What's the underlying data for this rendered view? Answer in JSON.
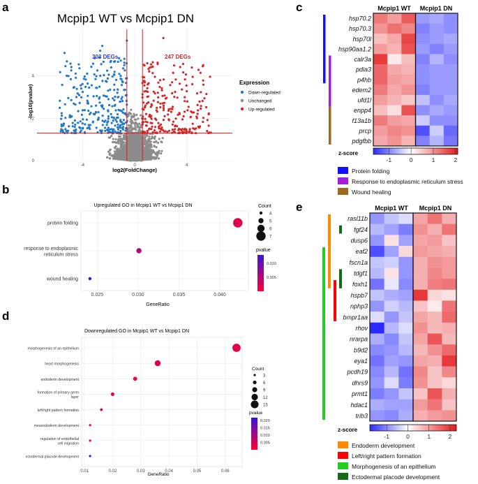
{
  "panels": {
    "a": "a",
    "b": "b",
    "c": "c",
    "d": "d",
    "e": "e"
  },
  "colors": {
    "down": "#1f78c8",
    "up": "#d62728",
    "unchanged": "#8c8c8c",
    "hm_low": "#2b2bff",
    "hm_mid": "#ffffff",
    "hm_high": "#e31a1c",
    "protein_folding": "#1010ff",
    "er_stress": "#a01fd8",
    "wound_healing": "#9c6a1f",
    "endoderm": "#ff8a00",
    "left_right": "#ff0000",
    "morphogenesis": "#22cc22",
    "ectodermal": "#136b13"
  },
  "chart_data": [
    {
      "id": "volcano",
      "type": "scatter",
      "title": "Mcpip1 WT vs Mcpip1 DN",
      "xlabel": "log2(FoldChange)",
      "ylabel": "-log10(pvalue)",
      "xticks": [
        -4,
        0,
        4
      ],
      "yticks": [
        0,
        2,
        4
      ],
      "xlim": [
        -7.5,
        7.5
      ],
      "ylim": [
        0,
        6.2
      ],
      "fc_threshold": 0.6,
      "p_threshold": 1.3,
      "down_label": "303 DEGs",
      "up_label": "247 DEGs",
      "legend_title": "Expression",
      "legend": [
        "Down-regulated",
        "Unchanged",
        "Up-regulated"
      ]
    },
    {
      "id": "go_up",
      "type": "scatter",
      "title": "Upregulated GO in Mcpip1 WT vs Mcpip1 DN",
      "xlabel": "GeneRatio",
      "xticks": [
        "0.025",
        "0.030",
        "0.035",
        "0.040"
      ],
      "xlim": [
        0.023,
        0.0435
      ],
      "terms": [
        "protein folding",
        "response to endoplasmic reticulum stress",
        "wound healing"
      ],
      "term_lines": [
        [
          "protein folding"
        ],
        [
          "response to endoplasmic",
          "reticulum stress"
        ],
        [
          "wound healing"
        ]
      ],
      "gene_ratio": [
        0.0422,
        0.0301,
        0.0241
      ],
      "count": [
        7,
        5,
        4
      ],
      "pvalue": [
        0.002,
        0.006,
        0.013
      ],
      "size_legend_title": "Count",
      "size_legend": [
        "4",
        "5",
        "6",
        "7"
      ],
      "color_legend_title": "pvalue",
      "color_ticks": [
        "0.010",
        "0.005"
      ]
    },
    {
      "id": "go_down",
      "type": "scatter",
      "title": "Downregulated GO in Mcpip1 WT vs Mcpip1 DN",
      "xlabel": "GeneRatio",
      "xticks": [
        "0.01",
        "0.02",
        "0.03",
        "0.04",
        "0.05",
        "0.06"
      ],
      "xlim": [
        0.009,
        0.066
      ],
      "terms": [
        "morphogenesis of an epithelium",
        "heart morphogenesis",
        "endoderm development",
        "formation of primary germ layer",
        "left/right pattern formation",
        "mesendoderm development",
        "regulation of endothelial cell migration",
        "ectodermal placode development"
      ],
      "term_lines": [
        [
          "morphogenesis of an epithelium"
        ],
        [
          "heart morphogenesis"
        ],
        [
          "endoderm development"
        ],
        [
          "formation of primary germ",
          "layer"
        ],
        [
          "left/right pattern formation"
        ],
        [
          "mesendoderm development"
        ],
        [
          "regulation of endothelial",
          "cell migration"
        ],
        [
          "ectodermal placode development"
        ]
      ],
      "gene_ratio": [
        0.064,
        0.036,
        0.028,
        0.02,
        0.016,
        0.012,
        0.012,
        0.012
      ],
      "count": [
        16,
        11,
        7,
        6,
        4,
        3,
        3,
        3
      ],
      "pvalue": [
        0.003,
        0.004,
        0.002,
        0.003,
        0.004,
        0.002,
        0.003,
        0.021
      ],
      "size_legend_title": "Count",
      "size_legend": [
        "3",
        "6",
        "9",
        "12",
        "15"
      ],
      "color_legend_title": "pvalue",
      "color_ticks": [
        "0.020",
        "0.015",
        "0.010",
        "0.005"
      ]
    },
    {
      "id": "heatmap_c",
      "type": "heatmap",
      "columns_groups": [
        "Mcpip1 WT",
        "Mcpip1 DN"
      ],
      "rows": [
        "hsp70.2",
        "hsp70.3",
        "hsp70l",
        "hsp90aa1.2",
        "calr3a",
        "pdia3",
        "p4hb",
        "edem2",
        "ufd1l",
        "enpp4",
        "f13a1b",
        "prcp",
        "pdgfbb"
      ],
      "values": [
        [
          1.2,
          0.9,
          1.5,
          -0.8,
          -0.7,
          -0.9
        ],
        [
          1.0,
          1.3,
          1.1,
          -1.0,
          -0.8,
          -0.9
        ],
        [
          0.6,
          0.8,
          1.7,
          -0.9,
          -0.8,
          -0.7
        ],
        [
          0.9,
          0.7,
          1.6,
          -0.8,
          -1.0,
          -0.8
        ],
        [
          1.8,
          0.2,
          0.6,
          -1.0,
          -0.6,
          -0.9
        ],
        [
          1.4,
          0.8,
          0.7,
          -0.9,
          -0.8,
          -0.8
        ],
        [
          1.4,
          0.9,
          0.8,
          -0.9,
          -0.8,
          -0.8
        ],
        [
          1.2,
          0.8,
          1.0,
          -1.0,
          -0.8,
          -0.8
        ],
        [
          0.9,
          0.7,
          0.5,
          -0.5,
          -0.9,
          -0.7
        ],
        [
          0.6,
          0.3,
          1.6,
          -0.9,
          -0.7,
          -0.8
        ],
        [
          1.2,
          0.9,
          0.8,
          -0.4,
          -0.9,
          -0.9
        ],
        [
          0.9,
          1.1,
          1.0,
          -1.4,
          -0.4,
          -1.2
        ],
        [
          0.8,
          1.0,
          0.7,
          -1.0,
          -0.6,
          -1.1
        ]
      ],
      "zscore_label": "z-score",
      "zscore_ticks": [
        "-1",
        "0",
        "1",
        "2"
      ],
      "zlim": [
        -1.7,
        2.1
      ],
      "row_groups": [
        {
          "name": "Protein folding",
          "color_key": "protein_folding",
          "rows": [
            0,
            8
          ]
        },
        {
          "name": "Response to endoplasmic reticulum stress",
          "color_key": "er_stress",
          "rows": [
            4,
            9
          ]
        },
        {
          "name": "Wound healing",
          "color_key": "wound_healing",
          "rows": [
            9,
            12
          ]
        }
      ]
    },
    {
      "id": "heatmap_e",
      "type": "heatmap",
      "columns_groups": [
        "Mcpip1 WT",
        "Mcpip1 DN"
      ],
      "rows": [
        "rasl11b",
        "fgf24",
        "dusp6",
        "eaf2",
        "fscn1a",
        "tdgf1",
        "foxh1",
        "hspb7",
        "nphp3",
        "bmpr1aa",
        "rhov",
        "nrarpa",
        "b9d2",
        "eya1",
        "pcdh19",
        "dhrs9",
        "prmt1",
        "hdac1",
        "trib3"
      ],
      "values": [
        [
          -0.9,
          -0.5,
          -0.3,
          0.9,
          1.4,
          0.8
        ],
        [
          -0.6,
          -0.8,
          -1.1,
          1.1,
          0.8,
          1.4
        ],
        [
          -0.9,
          0.3,
          -0.8,
          0.9,
          1.0,
          0.6
        ],
        [
          -1.5,
          -0.8,
          0.4,
          1.0,
          0.9,
          0.8
        ],
        [
          -0.5,
          -0.4,
          -0.9,
          0.8,
          1.1,
          1.0
        ],
        [
          -0.6,
          0.3,
          -0.9,
          0.8,
          1.2,
          1.0
        ],
        [
          -1.2,
          -0.2,
          -1.0,
          0.8,
          1.3,
          1.4
        ],
        [
          -0.5,
          -0.7,
          -0.8,
          2.0,
          0.4,
          0.3
        ],
        [
          -0.9,
          -0.4,
          -0.6,
          0.6,
          0.2,
          1.4
        ],
        [
          -0.3,
          -0.9,
          -0.5,
          0.9,
          0.7,
          1.5
        ],
        [
          -1.9,
          -0.6,
          -0.3,
          1.1,
          0.7,
          0.8
        ],
        [
          -0.7,
          -1.0,
          -0.5,
          0.9,
          1.7,
          0.7
        ],
        [
          -1.0,
          -0.9,
          -0.6,
          0.7,
          1.1,
          1.5
        ],
        [
          -1.2,
          -0.8,
          -0.9,
          0.9,
          0.8,
          2.0
        ],
        [
          -1.0,
          -0.6,
          -1.2,
          1.2,
          0.6,
          1.2
        ],
        [
          -0.9,
          -0.3,
          -1.1,
          1.1,
          0.6,
          0.4
        ],
        [
          -1.1,
          -0.9,
          -0.5,
          0.6,
          1.7,
          0.8
        ],
        [
          -0.7,
          -0.8,
          -0.8,
          1.0,
          1.4,
          0.6
        ],
        [
          -0.9,
          -1.0,
          -0.7,
          0.8,
          1.0,
          1.1
        ]
      ],
      "zscore_label": "z-score",
      "zscore_ticks": [
        "-1",
        "0",
        "1",
        "2"
      ],
      "zlim": [
        -1.8,
        2.3
      ],
      "row_bars": [
        {
          "color_key": "endoderm",
          "rows": [
            0,
            6
          ],
          "offset": 0
        },
        {
          "color_key": "morphogenesis",
          "rows": [
            3,
            18
          ],
          "offset": -8
        },
        {
          "color_key": "left_right",
          "rows": [
            6,
            9
          ],
          "offset": 8
        },
        {
          "color_key": "ectodermal",
          "rows": [
            1,
            1
          ],
          "offset": 16
        },
        {
          "color_key": "ectodermal",
          "rows": [
            5,
            6
          ],
          "offset": 16
        }
      ],
      "legend": [
        {
          "name": "Endoderm development",
          "color_key": "endoderm"
        },
        {
          "name": "Left/right pattern formation",
          "color_key": "left_right"
        },
        {
          "name": "Morphogenesis of an epithelium",
          "color_key": "morphogenesis"
        },
        {
          "name": "Ectodermal placode development",
          "color_key": "ectodermal"
        }
      ]
    }
  ]
}
